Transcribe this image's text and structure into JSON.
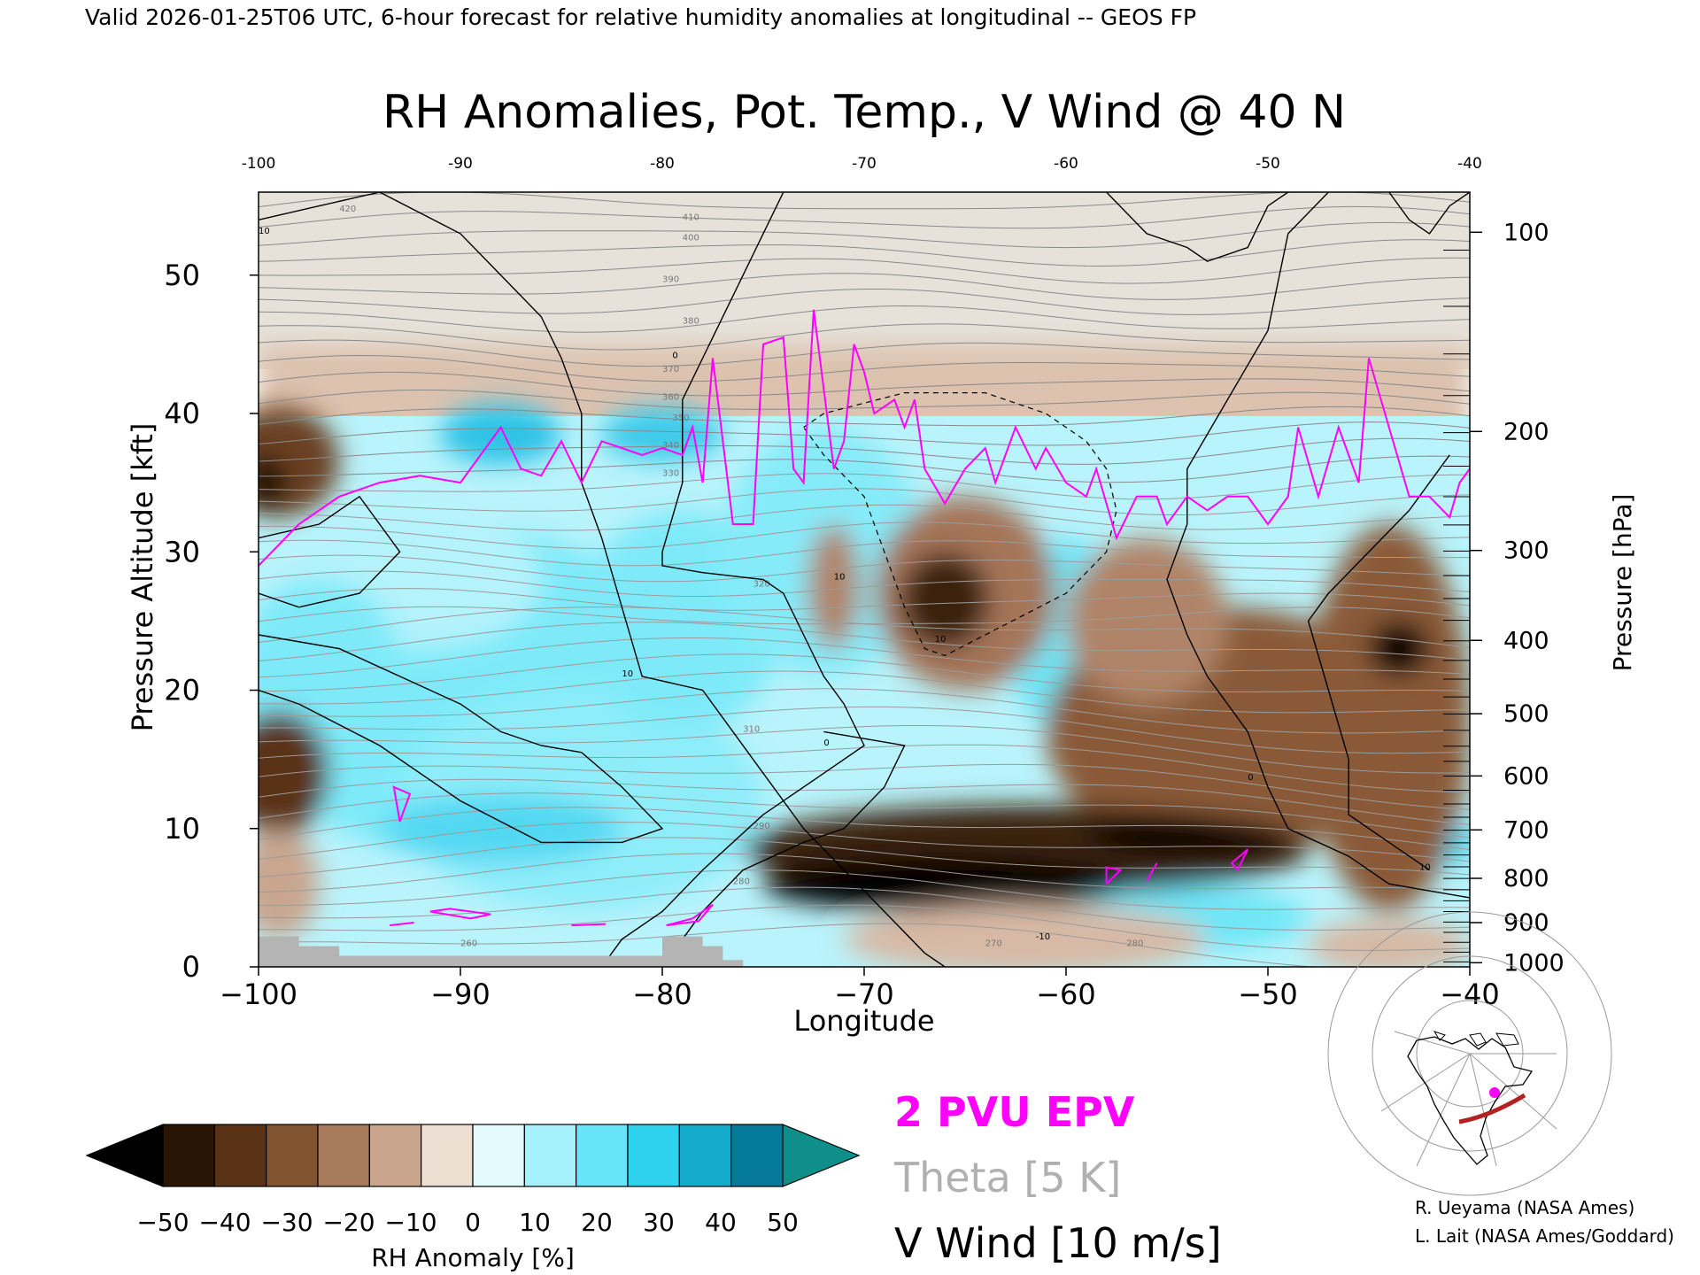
{
  "header": {
    "caption": "Valid 2026-01-25T06 UTC, 6-hour forecast for relative humidity anomalies at longitudinal -- GEOS FP"
  },
  "chart_data": {
    "type": "heatmap",
    "title": "RH Anomalies, Pot. Temp., V Wind @ 40 N",
    "xlabel": "Longitude",
    "ylabel": "Pressure Altitude [kft]",
    "y2label": "Pressure [hPa]",
    "xlim": [
      -100,
      -40
    ],
    "ylim": [
      0,
      56
    ],
    "x_ticks": [
      -100,
      -90,
      -80,
      -70,
      -60,
      -50,
      -40
    ],
    "x_tick_labels": [
      "−100",
      "−90",
      "−80",
      "−70",
      "−60",
      "−50",
      "−40"
    ],
    "top_ticks": [
      -100,
      -90,
      -80,
      -70,
      -60,
      -50,
      -40
    ],
    "top_tick_labels": [
      "-100",
      "-90",
      "-80",
      "-70",
      "-60",
      "-50",
      "-40"
    ],
    "y_ticks": [
      0,
      10,
      20,
      30,
      40,
      50
    ],
    "y_tick_labels": [
      "0",
      "10",
      "20",
      "30",
      "40",
      "50"
    ],
    "pressure_ticks": [
      {
        "hpa": 100,
        "kft": 53.1,
        "label": "100"
      },
      {
        "hpa": 200,
        "kft": 38.7,
        "label": "200"
      },
      {
        "hpa": 300,
        "kft": 30.1,
        "label": "300"
      },
      {
        "hpa": 400,
        "kft": 23.6,
        "label": "400"
      },
      {
        "hpa": 500,
        "kft": 18.3,
        "label": "500"
      },
      {
        "hpa": 600,
        "kft": 13.8,
        "label": "600"
      },
      {
        "hpa": 700,
        "kft": 9.9,
        "label": "700"
      },
      {
        "hpa": 800,
        "kft": 6.4,
        "label": "800"
      },
      {
        "hpa": 900,
        "kft": 3.2,
        "label": "900"
      },
      {
        "hpa": 1000,
        "kft": 0.3,
        "label": "1000"
      }
    ],
    "colorbar": {
      "label": "RH Anomaly [%]",
      "levels": [
        -50,
        -40,
        -30,
        -20,
        -10,
        0,
        10,
        20,
        30,
        40,
        50
      ],
      "tick_labels": [
        "−50",
        "−40",
        "−30",
        "−20",
        "−10",
        "0",
        "10",
        "20",
        "30",
        "40",
        "50"
      ],
      "colors": [
        "#2a1505",
        "#5a3216",
        "#82532f",
        "#a77a5b",
        "#c9a58e",
        "#eedfd3",
        "#e4fbfd",
        "#a5f1fb",
        "#65e5f7",
        "#2ed2ef",
        "#14aacb",
        "#05799a"
      ],
      "under_color": "#000000",
      "over_color": "#0f8f8a"
    },
    "blobs": [
      {
        "x": -90,
        "y": 20,
        "rx": 11,
        "ry": 12,
        "c": "#7eeaf9"
      },
      {
        "x": -84,
        "y": 12,
        "rx": 9,
        "ry": 8,
        "c": "#8fedfa"
      },
      {
        "x": -92,
        "y": 28,
        "rx": 6,
        "ry": 5,
        "c": "#b4f3fc"
      },
      {
        "x": -79,
        "y": 25,
        "rx": 5,
        "ry": 8,
        "c": "#7eeaf9"
      },
      {
        "x": -72,
        "y": 30,
        "rx": 5,
        "ry": 9,
        "c": "#86ebf9"
      },
      {
        "x": -88,
        "y": 38.5,
        "rx": 3,
        "ry": 2.2,
        "c": "#2dc3e6"
      },
      {
        "x": -80,
        "y": 38.5,
        "rx": 3,
        "ry": 2,
        "c": "#3ccbea"
      },
      {
        "x": -88,
        "y": 10,
        "rx": 6,
        "ry": 2.5,
        "c": "#52d8f2"
      },
      {
        "x": -60,
        "y": 24,
        "rx": 3,
        "ry": 7,
        "c": "#6fe6f7"
      },
      {
        "x": -55,
        "y": 3.5,
        "rx": 7,
        "ry": 2.5,
        "c": "#6fe6f7"
      },
      {
        "x": -97,
        "y": 22,
        "rx": 4,
        "ry": 6,
        "c": "#7eeaf9"
      },
      {
        "x": -42.5,
        "y": 9,
        "rx": 3,
        "ry": 2,
        "c": "#55d9f2"
      },
      {
        "x": -45,
        "y": 22,
        "rx": 2,
        "ry": 4,
        "c": "#b4f3fc"
      },
      {
        "x": -71.5,
        "y": 27.5,
        "rx": 1.3,
        "ry": 4.5,
        "c": "#b08468"
      },
      {
        "x": -65,
        "y": 27,
        "rx": 4.5,
        "ry": 7,
        "c": "#a57458"
      },
      {
        "x": -66,
        "y": 26.5,
        "rx": 2.2,
        "ry": 3.5,
        "c": "#3b220f"
      },
      {
        "x": -52,
        "y": 17,
        "rx": 9,
        "ry": 9,
        "c": "#8a5a37"
      },
      {
        "x": -56,
        "y": 25,
        "rx": 4,
        "ry": 6,
        "c": "#b08468"
      },
      {
        "x": -44,
        "y": 18,
        "rx": 4,
        "ry": 14,
        "c": "#8a5a37"
      },
      {
        "x": -43.5,
        "y": 23,
        "rx": 1.5,
        "ry": 2,
        "c": "#000000"
      },
      {
        "x": -62,
        "y": 8.5,
        "rx": 14,
        "ry": 3.2,
        "c": "#3a2210"
      },
      {
        "x": -66,
        "y": 6,
        "rx": 9,
        "ry": 2,
        "c": "#000000"
      },
      {
        "x": -54,
        "y": 9.5,
        "rx": 5,
        "ry": 1.3,
        "c": "#000000"
      },
      {
        "x": -98.5,
        "y": 14,
        "rx": 1.6,
        "ry": 3,
        "c": "#000000"
      },
      {
        "x": -99,
        "y": 14,
        "rx": 2.5,
        "ry": 4.5,
        "c": "#5a3216"
      },
      {
        "x": -99,
        "y": 36.5,
        "rx": 3,
        "ry": 4,
        "c": "#6b4022"
      },
      {
        "x": -99.6,
        "y": 35,
        "rx": 1,
        "ry": 2,
        "c": "#1e0f04"
      },
      {
        "x": -99,
        "y": 6,
        "rx": 2,
        "ry": 4,
        "c": "#c9a58e"
      },
      {
        "x": -62,
        "y": 2,
        "rx": 9,
        "ry": 2.5,
        "c": "#d7b9a5"
      },
      {
        "x": -44,
        "y": 1.5,
        "rx": 4,
        "ry": 2,
        "c": "#d7b9a5"
      }
    ],
    "epv_line": [
      [
        -100,
        29
      ],
      [
        -98,
        32
      ],
      [
        -96,
        34
      ],
      [
        -94,
        35
      ],
      [
        -92,
        35.5
      ],
      [
        -90,
        35
      ],
      [
        -89,
        37
      ],
      [
        -88,
        39
      ],
      [
        -87,
        36
      ],
      [
        -86,
        35.5
      ],
      [
        -85,
        38
      ],
      [
        -84,
        35
      ],
      [
        -83,
        38
      ],
      [
        -82,
        37.5
      ],
      [
        -81,
        37
      ],
      [
        -80,
        37.5
      ],
      [
        -79,
        37
      ],
      [
        -78.5,
        39
      ],
      [
        -78,
        35
      ],
      [
        -77.5,
        44
      ],
      [
        -76.5,
        32
      ],
      [
        -75.5,
        32
      ],
      [
        -75,
        45
      ],
      [
        -74,
        45.5
      ],
      [
        -73.5,
        36
      ],
      [
        -73,
        35
      ],
      [
        -72.5,
        47.5
      ],
      [
        -71.5,
        36
      ],
      [
        -71,
        38
      ],
      [
        -70.5,
        45
      ],
      [
        -70,
        43
      ],
      [
        -69.5,
        40
      ],
      [
        -68.5,
        41
      ],
      [
        -68,
        39
      ],
      [
        -67.5,
        41
      ],
      [
        -67,
        36
      ],
      [
        -66,
        33.5
      ],
      [
        -65,
        36
      ],
      [
        -64,
        37.5
      ],
      [
        -63.5,
        35
      ],
      [
        -62.5,
        39
      ],
      [
        -61.5,
        36
      ],
      [
        -61,
        37.5
      ],
      [
        -60,
        35
      ],
      [
        -59,
        34
      ],
      [
        -58.5,
        36
      ],
      [
        -57.5,
        31
      ],
      [
        -56.5,
        34
      ],
      [
        -55.5,
        34
      ],
      [
        -55,
        32
      ],
      [
        -54,
        34
      ],
      [
        -53,
        33
      ],
      [
        -52,
        34
      ],
      [
        -51,
        34
      ],
      [
        -50,
        32
      ],
      [
        -49,
        34
      ],
      [
        -48.5,
        39
      ],
      [
        -47.5,
        34
      ],
      [
        -46.5,
        39
      ],
      [
        -45.5,
        35
      ],
      [
        -45,
        44
      ],
      [
        -44,
        39
      ],
      [
        -43,
        34
      ],
      [
        -42,
        34
      ],
      [
        -41,
        32.5
      ],
      [
        -40.5,
        35
      ],
      [
        -40,
        36
      ]
    ],
    "epv_blobs": [
      [
        [
          -93,
          10.5
        ],
        [
          -92.5,
          12.5
        ],
        [
          -93.3,
          13
        ],
        [
          -93,
          10.5
        ]
      ],
      [
        [
          -91.5,
          4
        ],
        [
          -89.5,
          3.5
        ],
        [
          -88.5,
          3.8
        ],
        [
          -90.5,
          4.2
        ],
        [
          -91.5,
          4
        ]
      ],
      [
        [
          -93.5,
          3
        ],
        [
          -92.3,
          3.2
        ],
        [
          -93.5,
          3
        ]
      ],
      [
        [
          -84.5,
          3
        ],
        [
          -82.8,
          3.1
        ],
        [
          -84.5,
          3
        ]
      ],
      [
        [
          -79.8,
          3
        ],
        [
          -78.5,
          3.5
        ],
        [
          -77.5,
          4.5
        ],
        [
          -78.2,
          3.3
        ],
        [
          -79.8,
          3
        ]
      ],
      [
        [
          -58,
          6
        ],
        [
          -57.3,
          7
        ],
        [
          -58,
          7.2
        ],
        [
          -58,
          6
        ]
      ],
      [
        [
          -56,
          6.2
        ],
        [
          -55.5,
          7.5
        ],
        [
          -56,
          6.2
        ]
      ],
      [
        [
          -51.5,
          7
        ],
        [
          -51,
          8.5
        ],
        [
          -51.8,
          7.5
        ],
        [
          -51.5,
          7
        ]
      ]
    ]
  },
  "legend": {
    "epv_label": "2 PVU EPV",
    "theta_label": "Theta [5 K]",
    "vwind_label": "V Wind [10 m/s]",
    "epv_color": "#ff00ff",
    "theta_color": "#b0b0b0",
    "wind_color": "#000000"
  },
  "credits": {
    "line1": "R. Ueyama (NASA Ames)",
    "line2": "L. Lait (NASA Ames/Goddard)"
  },
  "theta_labels": [
    "420",
    "410",
    "400",
    "390",
    "380",
    "370",
    "360",
    "350",
    "340",
    "330",
    "320",
    "310",
    "290",
    "280",
    "260",
    "270",
    "280"
  ],
  "wind_labels": [
    "10",
    "0",
    "10",
    "10",
    "0",
    "10",
    "-10",
    "0",
    "10"
  ]
}
